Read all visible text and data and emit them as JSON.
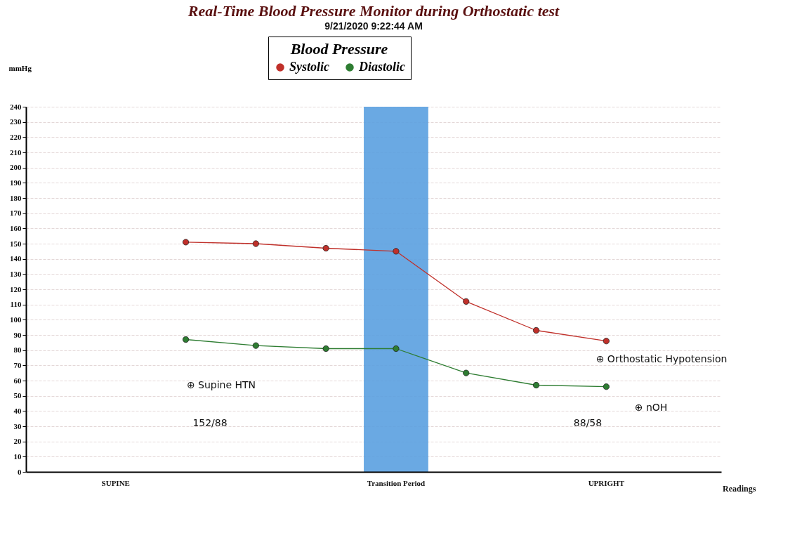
{
  "chart_data": {
    "type": "line",
    "title": "Real-Time Blood Pressure Monitor during Orthostatic test",
    "subtitle": "9/21/2020 9:22:44 AM",
    "ylabel": "mmHg",
    "legend_title": "Blood Pressure",
    "legend": "top",
    "grid": "y",
    "marker": "circle",
    "line_style": "solid",
    "categories": [
      "SUPINE",
      null,
      null,
      null,
      "Transition Period",
      null,
      null,
      "UPRIGHT"
    ],
    "ylim": [
      0,
      240
    ],
    "yticks": [
      0,
      10,
      20,
      30,
      40,
      50,
      60,
      70,
      80,
      90,
      100,
      110,
      120,
      130,
      140,
      150,
      160,
      170,
      180,
      190,
      200,
      210,
      220,
      230,
      240
    ],
    "series": [
      {
        "name": "Systolic",
        "color": "#c0302a",
        "values": [
          null,
          151,
          150,
          147,
          145,
          112,
          93,
          86
        ]
      },
      {
        "name": "Diastolic",
        "color": "#2e7d32",
        "values": [
          null,
          87,
          83,
          81,
          81,
          65,
          57,
          56
        ]
      }
    ],
    "bands": [
      {
        "axis": "x",
        "from": "Transition Period",
        "to": "Transition Period",
        "color": "#5aa0e0"
      }
    ],
    "annotations": [
      "⊕ Supine HTN",
      "152/88",
      "88/58",
      "⊕ Orthostatic Hypotension",
      "⊕ nOH",
      "Readings"
    ]
  }
}
